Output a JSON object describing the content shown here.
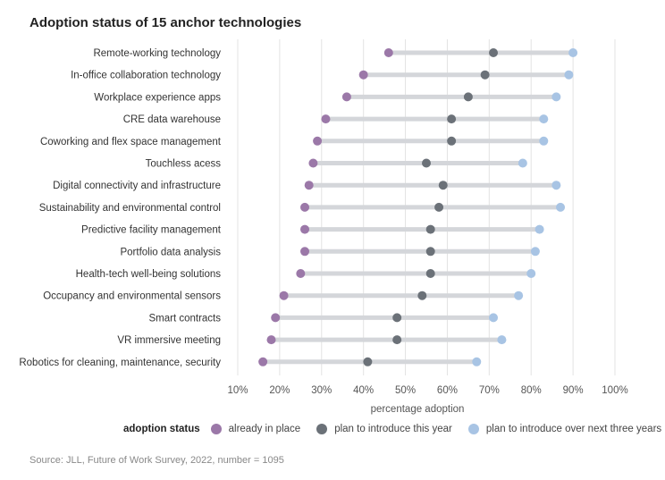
{
  "title": "Adoption status of 15 anchor technologies",
  "source": "Source: JLL, Future of Work Survey, 2022, number = 1095",
  "legend": {
    "title": "adoption status",
    "items": [
      {
        "label": "already in place",
        "color": "#9b78a8"
      },
      {
        "label": "plan to introduce this year",
        "color": "#6b7178"
      },
      {
        "label": "plan to introduce over next three years",
        "color": "#a8c4e4"
      }
    ]
  },
  "chart_data": {
    "type": "dumbbell",
    "title": "Adoption status of 15 anchor technologies",
    "xlabel": "percentage adoption",
    "xlim": [
      10,
      100
    ],
    "x_ticks": [
      "10%",
      "20%",
      "30%",
      "40%",
      "50%",
      "60%",
      "70%",
      "80%",
      "90%",
      "100%"
    ],
    "grid": true,
    "legend_position": "bottom",
    "categories": [
      "Remote-working technology",
      "In-office collaboration technology",
      "Workplace experience apps",
      "CRE data warehouse",
      "Coworking and flex space management",
      "Touchless acess",
      "Digital connectivity and infrastructure",
      "Sustainability and environmental control",
      "Predictive facility management",
      "Portfolio data analysis",
      "Health-tech well-being solutions",
      "Occupancy and environmental sensors",
      "Smart contracts",
      "VR immersive meeting",
      "Robotics for cleaning, maintenance, security"
    ],
    "series": [
      {
        "name": "already in place",
        "color": "#9b78a8",
        "values": [
          46,
          40,
          36,
          31,
          29,
          28,
          27,
          26,
          26,
          26,
          25,
          21,
          19,
          18,
          16
        ]
      },
      {
        "name": "plan to introduce this year",
        "color": "#6b7178",
        "values": [
          71,
          69,
          65,
          61,
          61,
          55,
          59,
          58,
          56,
          56,
          56,
          54,
          48,
          48,
          41
        ]
      },
      {
        "name": "plan to introduce over next three years",
        "color": "#a8c4e4",
        "values": [
          90,
          89,
          86,
          83,
          83,
          78,
          86,
          87,
          82,
          81,
          80,
          77,
          71,
          73,
          67
        ]
      }
    ]
  }
}
